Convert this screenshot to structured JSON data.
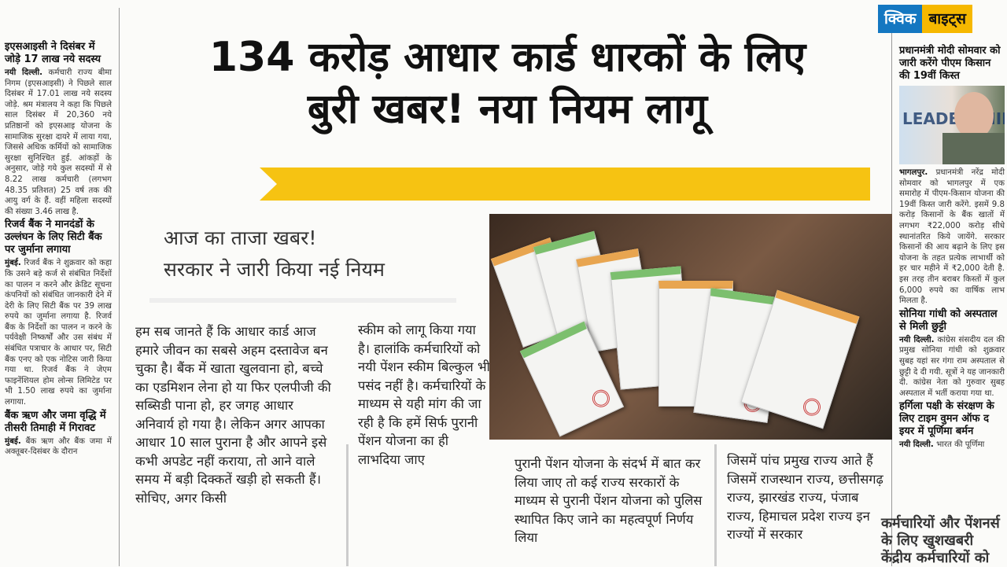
{
  "title": {
    "line1": "134 करोड़ आधार कार्ड धारकों के लिए",
    "line2": "बुरी खबर! नया नियम लागू"
  },
  "banner_color": "#f6c312",
  "subheading": {
    "line1": "आज का ताजा खबर!",
    "line2": "सरकार ने जारी किया नई नियम"
  },
  "left_column": [
    {
      "headline": "इएसआइसी ने दिसंबर में जोड़े 17 लाख नये सदस्य",
      "dateline": "नयी दिल्ली.",
      "text": "कर्मचारी राज्य बीमा निगम (इएसआइसी) ने पिछले साल दिसंबर में 17.01 लाख नये सदस्य जोड़े. श्रम मंत्रालय ने कहा कि पिछले साल दिसंबर में 20,360 नये प्रतिष्ठानों को इएसआइ योजना के सामाजिक सुरक्षा दायरे में लाया गया, जिससे अधिक कर्मियों को सामाजिक सुरक्षा सुनिश्चित हुई. आंकड़ों के अनुसार, जोड़े गये कुल सदस्यों में से 8.22 लाख कर्मचारी (लगभग 48.35 प्रतिशत) 25 वर्ष तक की आयु वर्ग के हैं. वहीं महिला सदस्यों की संख्या 3.46 लाख है."
    },
    {
      "headline": "रिजर्व बैंक ने मानदंडों के उल्लंघन के लिए सिटी बैंक पर जुर्माना लगाया",
      "dateline": "मुंबई.",
      "text": "रिजर्व बैंक ने शुक्रवार को कहा कि उसने बड़े कर्ज से संबंधित निर्देशों का पालन न करने और क्रेडिट सूचना कंपनियों को संबंधित जानकारी देने में देरी के लिए सिटी बैंक पर 39 लाख रुपये का जुर्माना लगाया है. रिजर्व बैंक के निर्देशों का पालन न करने के पर्यवेक्षी निष्कर्षों और उस संबंध में संबंधित पत्राचार के आधार पर, सिटी बैंक एनए को एक नोटिस जारी किया गया था. रिजर्व बैंक ने जेएम फाइनेंशियल होम लोन्स लिमिटेड पर भी 1.50 लाख रुपये का जुर्माना लगाया."
    },
    {
      "headline": "बैंक ऋण और जमा वृद्धि में तीसरी तिमाही में गिरावट",
      "dateline": "मुंबई.",
      "text": "बैंक ऋण और बैंक जमा में अक्तूबर-दिसंबर के दौरान"
    }
  ],
  "right_column": {
    "badge": {
      "part1": "क्विक",
      "part2": "बाइट्स"
    },
    "stories": [
      {
        "headline": "प्रधानमंत्री मोदी सोमवार को जारी करेंगे पीएम किसान की 19वीं किस्त",
        "dateline": "भागलपुर.",
        "text": "प्रधानमंत्री नरेंद्र मोदी सोमवार को भागलपुर में एक समारोह में पीएम-किसान योजना की 19वीं किस्त जारी करेंगे. इसमें 9.8 करोड़ किसानों के बैंक खातों में लगभग ₹22,000 करोड़ सीधे स्थानांतरित किये जायेंगे. सरकार किसानों की आय बढ़ाने के लिए इस योजना के तहत प्रत्येक लाभार्थी को हर चार महीने में ₹2,000 देती है. इस तरह तीन बराबर किस्तों में कुल 6,000 रुपये का वार्षिक लाभ मिलता है."
      },
      {
        "headline": "सोनिया गांधी को अस्पताल से मिली छुट्टी",
        "dateline": "नयी दिल्ली.",
        "text": "कांग्रेस संसदीय दल की प्रमुख सोनिया गांधी को शुक्रवार सुबह यहां सर गंगा राम अस्पताल से छुट्टी दे दी गयी. सूत्रों ने यह जानकारी दी. कांग्रेस नेता को गुरुवार सुबह अस्पताल में भर्ती कराया गया था."
      },
      {
        "headline": "हर्गिला पक्षी के संरक्षण के लिए टाइम वुमन ऑफ द इयर में पूर्णिमा बर्मन",
        "dateline": "नयी दिल्ली.",
        "text": "भारत की पूर्णिमा"
      }
    ],
    "photo_text": "LEADERSHIP"
  },
  "article_columns": [
    "हम सब जानते हैं कि आधार कार्ड आज हमारे जीवन का सबसे अहम दस्तावेज बन चुका है। बैंक में खाता खुलवाना हो, बच्चे का एडमिशन लेना हो या फिर एलपीजी की सब्सिडी पाना हो, हर जगह आधार अनिवार्य हो गया है। लेकिन अगर आपका आधार 10 साल पुराना है और आपने इसे कभी अपडेट नहीं कराया, तो आने वाले समय में बड़ी दिक्कतें खड़ी हो सकती हैं। सोचिए, अगर किसी",
    "स्कीम को लागू किया गया है। हालांकि कर्मचारियों को नयी पेंशन स्कीम बिल्कुल भी पसंद नहीं है। कर्मचारियों के माध्यम से यही मांग की जा रही है कि हमें सिर्फ पुरानी पेंशन योजना का ही लाभदिया जाए",
    "पुरानी पेंशन योजना के संदर्भ में बात कर लिया जाए तो कई राज्य सरकारों के माध्यम से पुरानी पेंशन योजना को पुलिस स्थापित किए जाने का महत्वपूर्ण निर्णय लिया",
    "जिसमें पांच प्रमुख राज्य आते हैं जिसमें राजस्थान राज्य, छत्तीसगढ़ राज्य, झारखंड राज्य, पंजाब राज्य, हिमाचल प्रदेश राज्य इन राज्यों में सरकार"
  ],
  "overlay_text": "कर्मचारियों और पेंशनर्स के लिए खुशखबरी केंद्रीय कर्मचारियों को"
}
